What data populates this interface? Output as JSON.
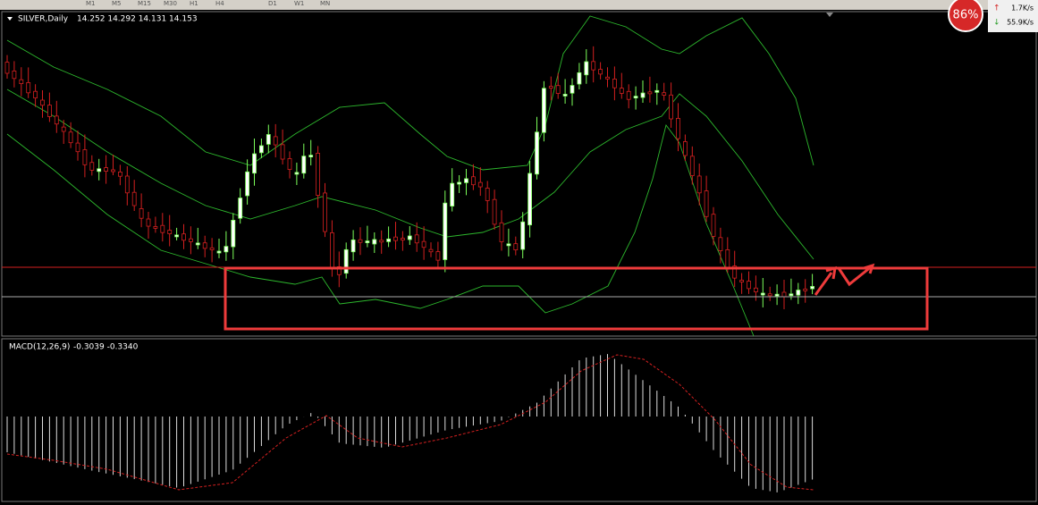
{
  "toolbar": {
    "timeframes": [
      "M1",
      "M5",
      "M15",
      "M30",
      "H1",
      "H4",
      "D1",
      "W1",
      "MN"
    ]
  },
  "main_panel": {
    "title": "SILVER,Daily",
    "quote": "14.252 14.292 14.131 14.153"
  },
  "macd_panel": {
    "title": "MACD(12,26,9)",
    "values": "-0.3039 -0.3340"
  },
  "widget": {
    "percent": "86%",
    "upload": "1.7K/s",
    "download": "55.9K/s"
  }
}
